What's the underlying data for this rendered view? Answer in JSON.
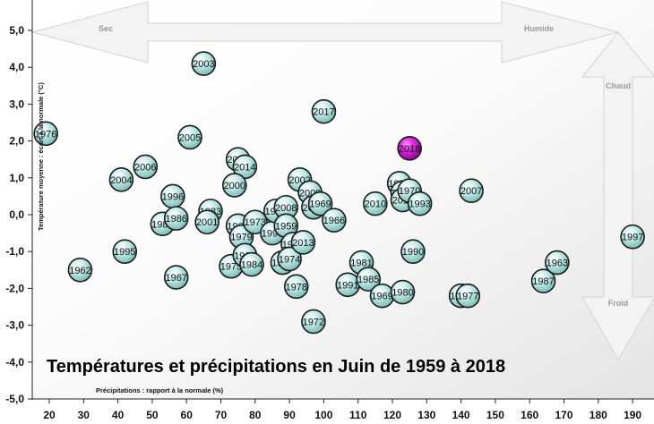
{
  "chart_data": {
    "type": "scatter",
    "title": "Températures et précipitations en Juin de 1959 à 2018",
    "xlabel": "Précipitations : rapport à la normale (%)",
    "ylabel": "Température moyenne : écart à la normale (°C)",
    "xlim": [
      15,
      195
    ],
    "ylim": [
      -5,
      5.2
    ],
    "x_ticks": [
      20,
      30,
      40,
      50,
      60,
      70,
      80,
      90,
      100,
      110,
      120,
      130,
      140,
      150,
      160,
      170,
      180,
      190
    ],
    "y_ticks": [
      "5,0",
      "4,0",
      "3,0",
      "2,0",
      "1,0",
      "0,0",
      "-1,0",
      "-2,0",
      "-3,0",
      "-4,0",
      "-5,0"
    ],
    "y_tick_values": [
      5,
      4,
      3,
      2,
      1,
      0,
      -1,
      -2,
      -3,
      -4,
      -5
    ],
    "directions": {
      "dry": "Sec",
      "wet": "Humide",
      "hot": "Chaud",
      "cold": "Froid"
    },
    "highlight_year": "2018",
    "colors": {
      "point": "#b9e6e2",
      "highlight": "#cc00cc",
      "arrow": "#f2f2f2"
    },
    "grid": false,
    "points": [
      {
        "year": "1976",
        "x": 19,
        "y": 2.2
      },
      {
        "year": "1962",
        "x": 29,
        "y": -1.5
      },
      {
        "year": "2004",
        "x": 41,
        "y": 0.95
      },
      {
        "year": "1995",
        "x": 42,
        "y": -1.0
      },
      {
        "year": "2006",
        "x": 48,
        "y": 1.3
      },
      {
        "year": "1989",
        "x": 53,
        "y": -0.25
      },
      {
        "year": "1996",
        "x": 56,
        "y": 0.5
      },
      {
        "year": "1986",
        "x": 57,
        "y": -0.1
      },
      {
        "year": "1967",
        "x": 57,
        "y": -1.7
      },
      {
        "year": "2003",
        "x": 65,
        "y": 4.1
      },
      {
        "year": "2005",
        "x": 61,
        "y": 2.1
      },
      {
        "year": "1983",
        "x": 67,
        "y": 0.1
      },
      {
        "year": "2001",
        "x": 66,
        "y": -0.2
      },
      {
        "year": "2015",
        "x": 75,
        "y": 1.5
      },
      {
        "year": "2014",
        "x": 77,
        "y": 1.3
      },
      {
        "year": "2000",
        "x": 74,
        "y": 0.8
      },
      {
        "year": "1964",
        "x": 75,
        "y": -0.3
      },
      {
        "year": "1979",
        "x": 76,
        "y": -0.6
      },
      {
        "year": "1975",
        "x": 73,
        "y": -1.4
      },
      {
        "year": "1965",
        "x": 77,
        "y": -1.1
      },
      {
        "year": "1984",
        "x": 79,
        "y": -1.35
      },
      {
        "year": "1973",
        "x": 80,
        "y": -0.2
      },
      {
        "year": "1999",
        "x": 85,
        "y": -0.5
      },
      {
        "year": "1998",
        "x": 86,
        "y": 0.1
      },
      {
        "year": "2008",
        "x": 89,
        "y": 0.2
      },
      {
        "year": "1959",
        "x": 89,
        "y": -0.3
      },
      {
        "year": "1960",
        "x": 91,
        "y": -0.8
      },
      {
        "year": "1956",
        "x": 88,
        "y": -1.3
      },
      {
        "year": "1974",
        "x": 90,
        "y": -1.2
      },
      {
        "year": "2013",
        "x": 94,
        "y": -0.75
      },
      {
        "year": "2002",
        "x": 93,
        "y": 0.95
      },
      {
        "year": "2009",
        "x": 96,
        "y": 0.6
      },
      {
        "year": "2016",
        "x": 97,
        "y": 0.2
      },
      {
        "year": "1969",
        "x": 99,
        "y": 0.3
      },
      {
        "year": "1978",
        "x": 92,
        "y": -1.95
      },
      {
        "year": "1972",
        "x": 97,
        "y": -2.9
      },
      {
        "year": "2017",
        "x": 100,
        "y": 2.8
      },
      {
        "year": "1966",
        "x": 103,
        "y": -0.15
      },
      {
        "year": "1991",
        "x": 107,
        "y": -1.9
      },
      {
        "year": "1981",
        "x": 111,
        "y": -1.3
      },
      {
        "year": "1985",
        "x": 113,
        "y": -1.75
      },
      {
        "year": "2010",
        "x": 115,
        "y": 0.3
      },
      {
        "year": "1969",
        "x": 117,
        "y": -2.2
      },
      {
        "year": "1982",
        "x": 122,
        "y": 0.85
      },
      {
        "year": "2012",
        "x": 123,
        "y": 0.6
      },
      {
        "year": "2011",
        "x": 123,
        "y": 0.4
      },
      {
        "year": "1970",
        "x": 125,
        "y": 0.65
      },
      {
        "year": "1993",
        "x": 128,
        "y": 0.3
      },
      {
        "year": "1980",
        "x": 123,
        "y": -2.1
      },
      {
        "year": "2018",
        "x": 125,
        "y": 1.8
      },
      {
        "year": "1990",
        "x": 126,
        "y": -1.0
      },
      {
        "year": "2007",
        "x": 143,
        "y": 0.65
      },
      {
        "year": "1971",
        "x": 140,
        "y": -2.2
      },
      {
        "year": "1977",
        "x": 142,
        "y": -2.2
      },
      {
        "year": "1987",
        "x": 164,
        "y": -1.8
      },
      {
        "year": "1963",
        "x": 168,
        "y": -1.3
      },
      {
        "year": "1997",
        "x": 190,
        "y": -0.6
      }
    ]
  }
}
